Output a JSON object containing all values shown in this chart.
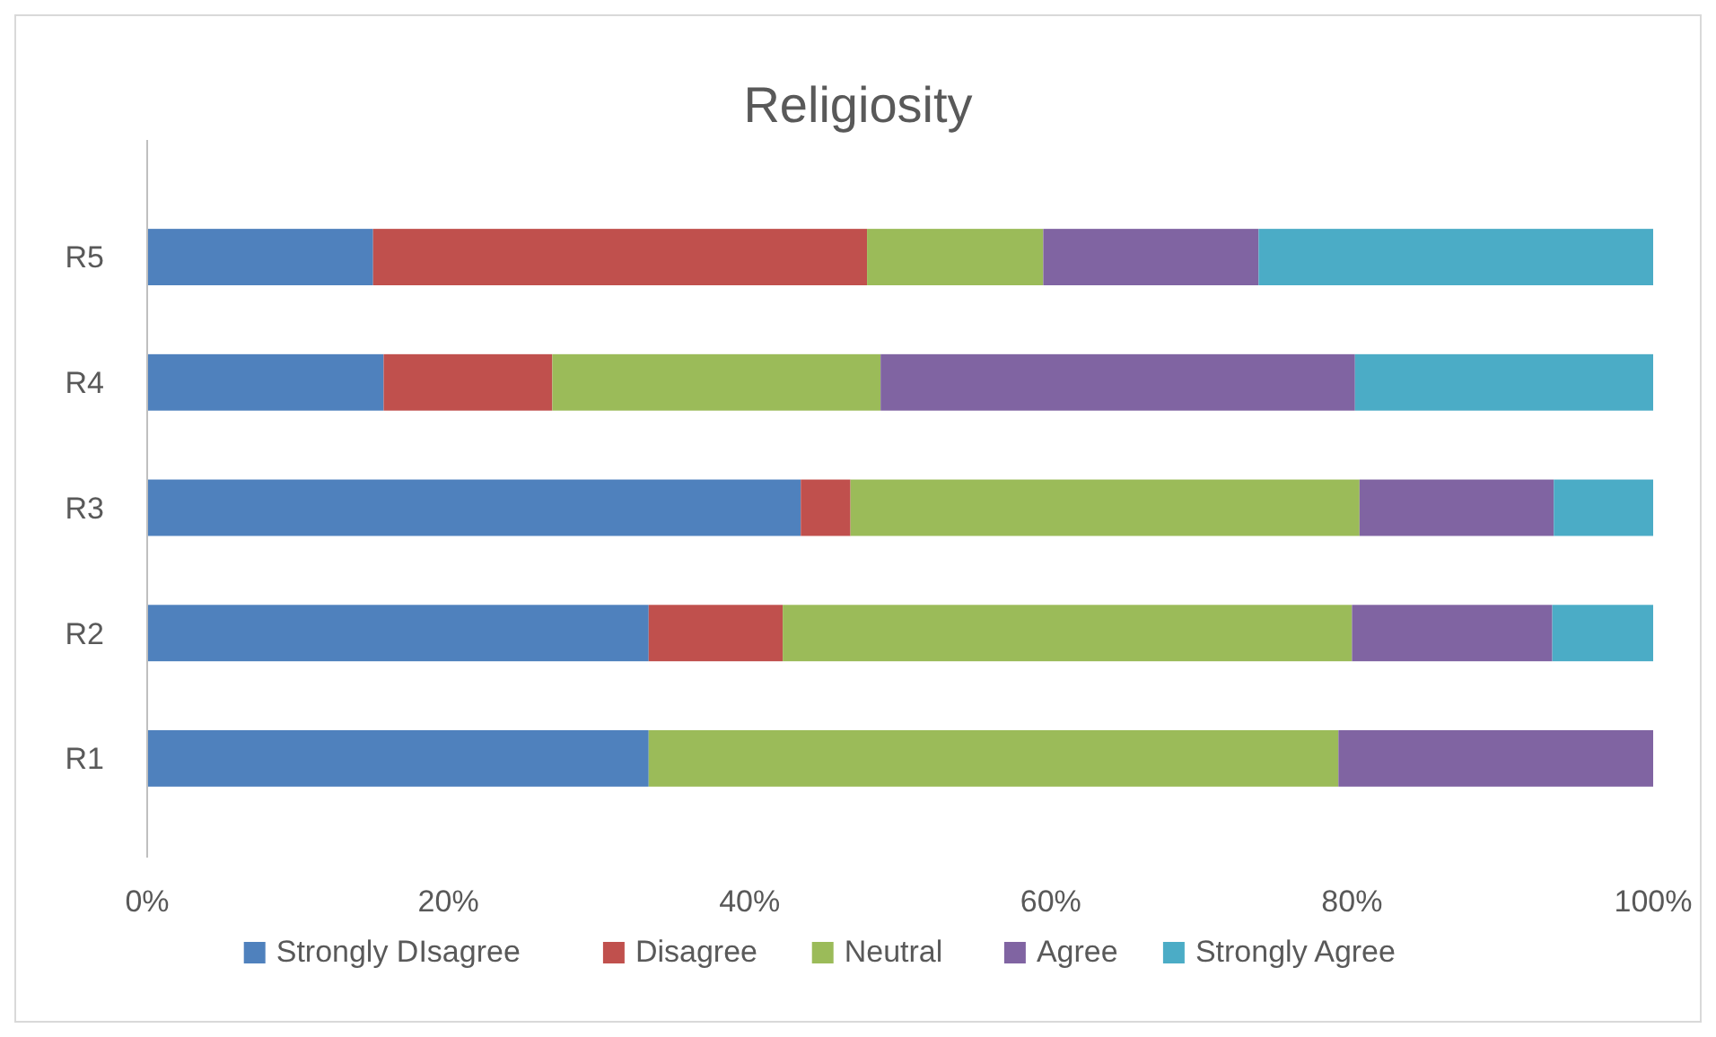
{
  "chart_data": {
    "type": "bar",
    "orientation": "horizontal",
    "stacked": true,
    "title": "Religiosity",
    "categories": [
      "R5",
      "R4",
      "R3",
      "R2",
      "R1"
    ],
    "series": [
      {
        "name": "Strongly DIsagree",
        "color": "#4f81bd",
        "values": [
          15.0,
          15.7,
          43.4,
          33.3,
          33.3
        ]
      },
      {
        "name": "Disagree",
        "color": "#c0504d",
        "values": [
          32.8,
          11.2,
          3.3,
          8.9,
          0
        ]
      },
      {
        "name": "Neutral",
        "color": "#9bbb59",
        "values": [
          11.7,
          21.8,
          33.8,
          37.8,
          45.8
        ]
      },
      {
        "name": "Agree",
        "color": "#8064a2",
        "values": [
          14.3,
          31.5,
          12.9,
          13.3,
          20.9
        ]
      },
      {
        "name": "Strongly Agree",
        "color": "#4bacc6",
        "values": [
          26.2,
          19.8,
          6.6,
          6.7,
          0
        ]
      }
    ],
    "xlim": [
      0,
      100
    ],
    "xticks": [
      {
        "value": 0,
        "label": "0%"
      },
      {
        "value": 20,
        "label": "20%"
      },
      {
        "value": 40,
        "label": "40%"
      },
      {
        "value": 60,
        "label": "60%"
      },
      {
        "value": 80,
        "label": "80%"
      },
      {
        "value": 100,
        "label": "100%"
      }
    ],
    "grid": false,
    "legend": "bottom"
  }
}
